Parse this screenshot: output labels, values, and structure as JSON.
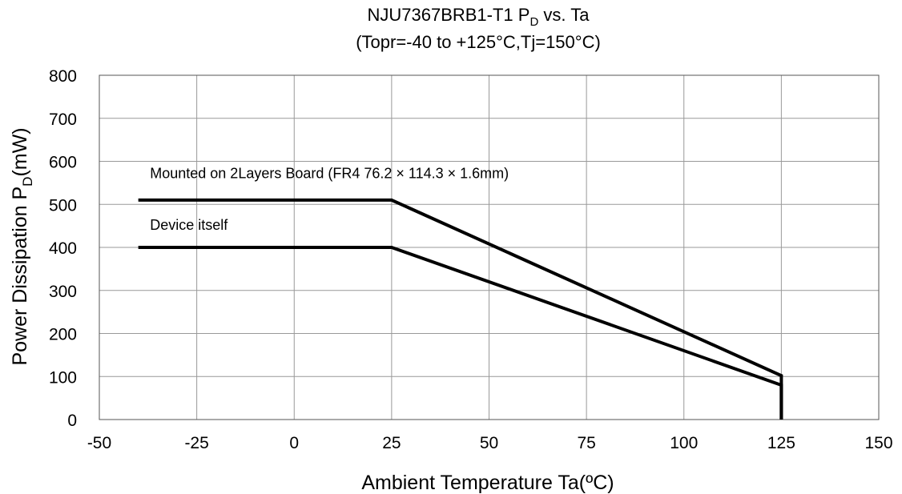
{
  "chart_data": {
    "type": "line",
    "title": {
      "line1_main": "NJU7367BRB1-T1 P",
      "line1_sub": "D",
      "line1_tail": " vs. Ta",
      "line2": "(Topr=-40 to +125°C,Tj=150°C)"
    },
    "xlabel": "Ambient Temperature Ta(ºC)",
    "ylabel": {
      "main": "Power Dissipation P",
      "sub": "D",
      "tail": "(mW)"
    },
    "xlim": [
      -50,
      150
    ],
    "ylim": [
      0,
      800
    ],
    "xticks": [
      -50,
      -25,
      0,
      25,
      50,
      75,
      100,
      125,
      150
    ],
    "yticks": [
      0,
      100,
      200,
      300,
      400,
      500,
      600,
      700,
      800
    ],
    "grid": true,
    "legend": "none",
    "series": [
      {
        "name": "Mounted on 2Layers Board (FR4 76.2 × 114.3 × 1.6mm)",
        "x": [
          -40,
          25,
          125,
          125
        ],
        "y": [
          510,
          510,
          102,
          0
        ]
      },
      {
        "name": "Device itself",
        "x": [
          -40,
          25,
          125,
          125
        ],
        "y": [
          400,
          400,
          80,
          0
        ]
      }
    ],
    "annotations": [
      {
        "text": "Mounted on 2Layers Board (FR4 76.2 × 114.3 × 1.6mm)",
        "x": -37,
        "y": 572
      },
      {
        "text": "Device itself",
        "x": -37,
        "y": 452
      }
    ],
    "line_color": "#000000",
    "grid_color": "#999999"
  }
}
